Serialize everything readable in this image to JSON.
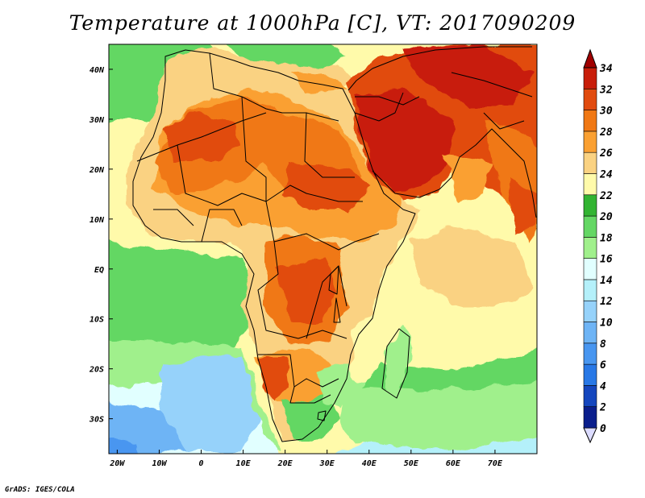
{
  "title": "Temperature at 1000hPa [C], VT: 2017090209",
  "credit": "GrADS: IGES/COLA",
  "map": {
    "lon_range": [
      -22,
      80
    ],
    "lat_range": [
      -37,
      45
    ],
    "x_ticks": [
      {
        "lon": -20,
        "label": "20W"
      },
      {
        "lon": -10,
        "label": "10W"
      },
      {
        "lon": 0,
        "label": "0"
      },
      {
        "lon": 10,
        "label": "10E"
      },
      {
        "lon": 20,
        "label": "20E"
      },
      {
        "lon": 30,
        "label": "30E"
      },
      {
        "lon": 40,
        "label": "40E"
      },
      {
        "lon": 50,
        "label": "50E"
      },
      {
        "lon": 60,
        "label": "60E"
      },
      {
        "lon": 70,
        "label": "70E"
      }
    ],
    "y_ticks": [
      {
        "lat": 40,
        "label": "40N"
      },
      {
        "lat": 30,
        "label": "30N"
      },
      {
        "lat": 20,
        "label": "20N"
      },
      {
        "lat": 10,
        "label": "10N"
      },
      {
        "lat": 0,
        "label": "EQ"
      },
      {
        "lat": -10,
        "label": "10S"
      },
      {
        "lat": -20,
        "label": "20S"
      },
      {
        "lat": -30,
        "label": "30S"
      }
    ]
  },
  "colorbar": {
    "levels": [
      "0",
      "2",
      "4",
      "6",
      "8",
      "10",
      "12",
      "14",
      "16",
      "18",
      "20",
      "22",
      "24",
      "26",
      "28",
      "30",
      "32",
      "34"
    ],
    "colors": [
      "#dcdcff",
      "#0a1e8c",
      "#1446be",
      "#2878e6",
      "#4896f0",
      "#6eb4f5",
      "#96d2fa",
      "#b4f0fa",
      "#e1ffff",
      "#a0f08c",
      "#64d764",
      "#32b432",
      "#fffaaa",
      "#fad282",
      "#faa032",
      "#f07814",
      "#e14b0f",
      "#c81e0a",
      "#a00000"
    ]
  }
}
